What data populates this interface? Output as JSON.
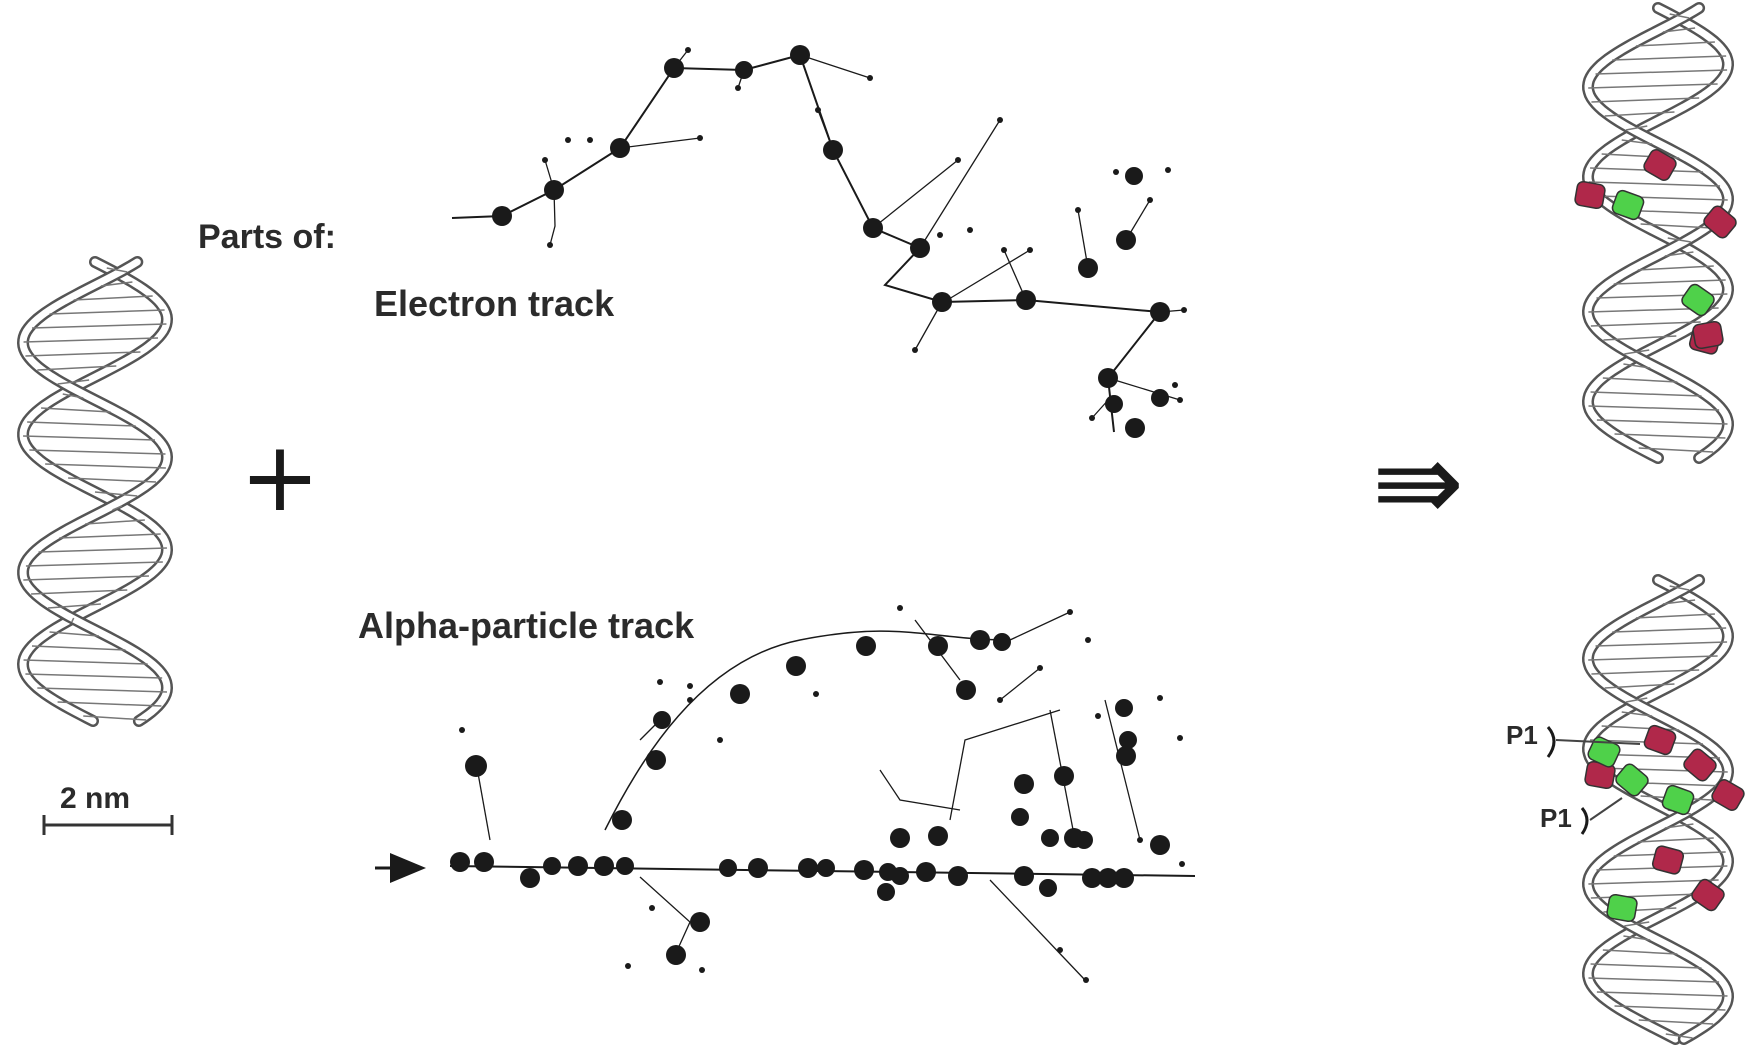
{
  "labels": {
    "parts_of": "Parts of:",
    "electron_track": "Electron track",
    "alpha_track": "Alpha-particle track",
    "scale_bar": "2 nm",
    "plus": "+",
    "implies": "⇛",
    "p1": "P1",
    "p2": "P1"
  },
  "colors": {
    "ink": "#1a1a1a",
    "dna_line": "#555555",
    "damage_red": "#b0284a",
    "damage_green": "#4fd14a"
  },
  "icons": {
    "left_dna": "dna-double-helix-icon",
    "top_right_dna": "damaged-dna-helix-icon",
    "bottom_right_dna": "damaged-dna-helix-icon"
  }
}
